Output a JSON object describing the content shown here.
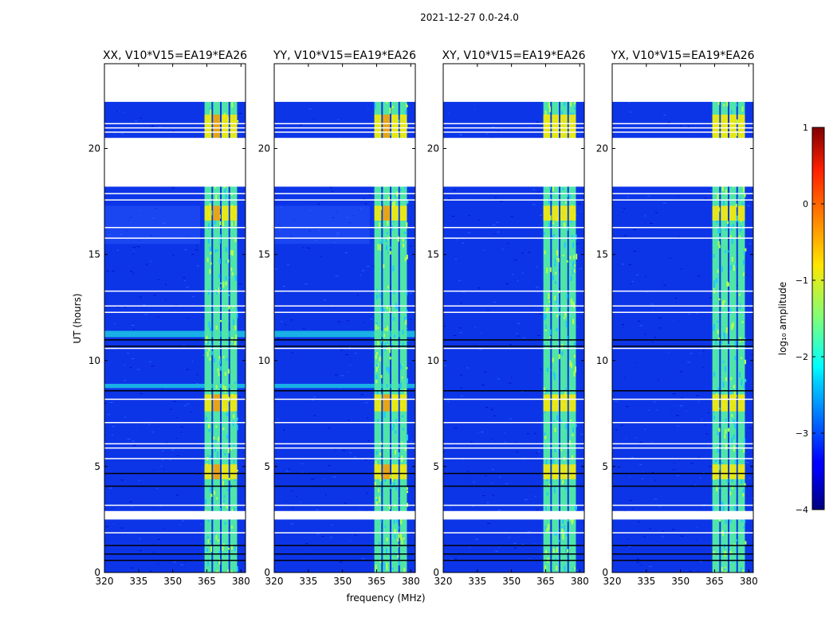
{
  "figure": {
    "suptitle": "2021-12-27 0.0-24.0"
  },
  "chart_data": {
    "type": "heatmap",
    "shared_ylabel": "UT (hours)",
    "shared_xlabel": "frequency (MHz)",
    "xlim": [
      320,
      382
    ],
    "ylim": [
      0,
      24
    ],
    "xticks": [
      320,
      335,
      350,
      365,
      380
    ],
    "yticks": [
      0,
      5,
      10,
      15,
      20
    ],
    "signal_band_mhz": [
      364,
      379
    ],
    "flagged_blocks_hours": [
      [
        2.5,
        2.9
      ],
      [
        18.2,
        20.5
      ],
      [
        22.2,
        24.0
      ]
    ],
    "panels": [
      {
        "title": "XX, V10*V15=EA19*EA26",
        "polarization": "XX"
      },
      {
        "title": "YY, V10*V15=EA19*EA26",
        "polarization": "YY"
      },
      {
        "title": "XY, V10*V15=EA19*EA26",
        "polarization": "XY"
      },
      {
        "title": "YX, V10*V15=EA19*EA26",
        "polarization": "YX"
      }
    ],
    "colorbar": {
      "label": "log₁₀ amplitude",
      "min": -4,
      "max": 1,
      "ticks": [
        1,
        0,
        -1,
        -2,
        -3,
        -4
      ],
      "tick_labels": [
        "1",
        "0",
        "−1",
        "−2",
        "−3",
        "−4"
      ],
      "colormap": "jet"
    }
  }
}
